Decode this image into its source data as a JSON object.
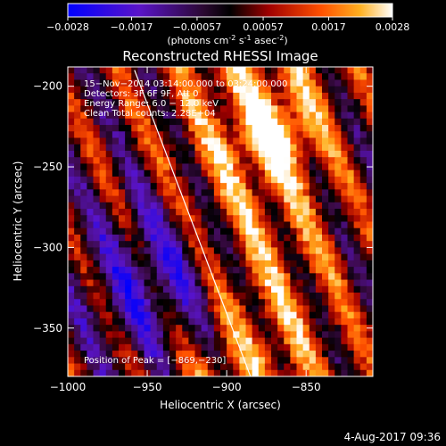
{
  "chart_data": {
    "type": "heatmap",
    "title": "Reconstructed RHESSI Image",
    "colorbar": {
      "ticks": [
        "-0.0028",
        "-0.0017",
        "-0.00057",
        "0.00057",
        "0.0017",
        "0.0028"
      ],
      "min": -0.0028,
      "max": 0.0028,
      "units_prefix": "(photons cm",
      "units_exp1": "-2",
      "units_s": " s",
      "units_exp2": "-1",
      "units_asec": " asec",
      "units_exp3": "-2",
      "units_suffix": ")"
    },
    "xlabel": "Heliocentric X (arcsec)",
    "ylabel": "Heliocentric Y (arcsec)",
    "xlim": [
      -1000,
      -808
    ],
    "ylim": [
      -380,
      -188
    ],
    "xticks": [
      {
        "value": -1000,
        "label": "−1000"
      },
      {
        "value": -950,
        "label": "−950"
      },
      {
        "value": -900,
        "label": "−900"
      },
      {
        "value": -850,
        "label": "−850"
      }
    ],
    "yticks": [
      {
        "value": -200,
        "label": "−200"
      },
      {
        "value": -250,
        "label": "−250"
      },
      {
        "value": -300,
        "label": "−300"
      },
      {
        "value": -350,
        "label": "−350"
      }
    ],
    "annotations": [
      "15−Nov−2014 03:14:00.000 to 03:24:00.000",
      "Detectors: 3F 6F 9F, Att 0",
      "Energy Range: 6.0 − 12.0 keV",
      "Clean    Total counts: 2.28E+04"
    ],
    "peak_label": "Position of Peak = [−869,−230]",
    "peak": {
      "x": -869,
      "y": -230
    },
    "limb_line": [
      {
        "x": -958,
        "y": -190
      },
      {
        "x": -885,
        "y": -380
      }
    ],
    "image_description_grid": {
      "nx": 48,
      "ny": 48,
      "stripe_angle_deg": 25,
      "bright_band_x_range": [
        -940,
        -830
      ],
      "dark_region_center": {
        "x": -940,
        "y": -320
      }
    }
  },
  "footer": {
    "timestamp": "4-Aug-2017 09:36"
  },
  "colors": {
    "background": "#000000",
    "foreground": "#ffffff"
  }
}
